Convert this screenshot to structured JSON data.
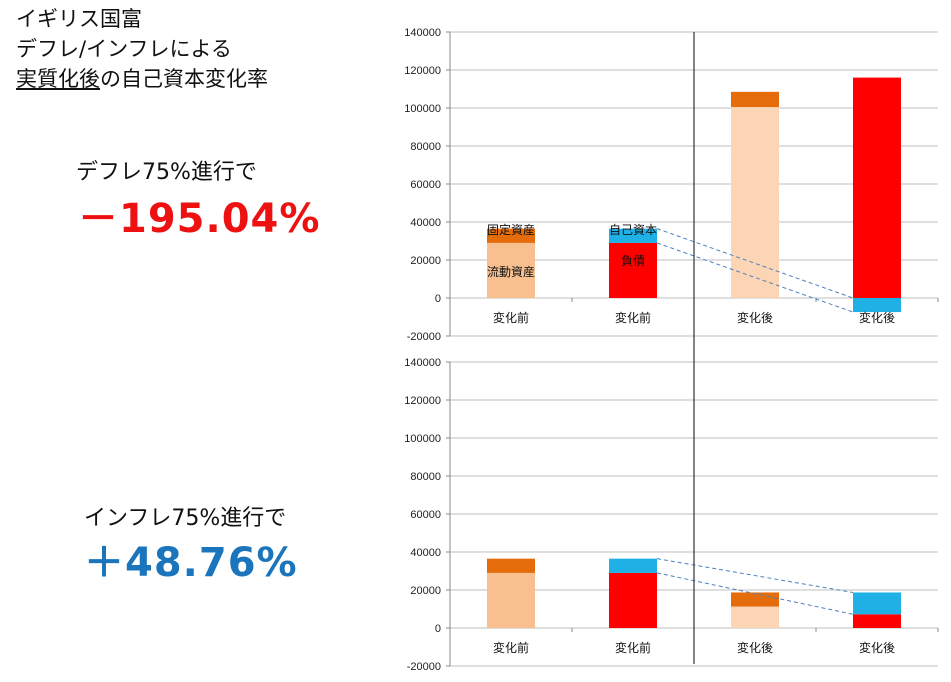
{
  "title": {
    "line1": "イギリス国富",
    "line2": "デフレ/インフレによる",
    "line3_underlined": "実質化後",
    "line3_rest": "の自己資本変化率"
  },
  "deflation": {
    "label": "デフレ75%進行で",
    "value": "－195.04%",
    "color": "#ee1111"
  },
  "inflation": {
    "label": "インフレ75%進行で",
    "value": "＋48.76%",
    "color": "#1a75bc"
  },
  "colors": {
    "current_assets": "#f9c08f",
    "current_assets_after": "#fcd5b4",
    "fixed_assets": "#e46c0a",
    "liabilities": "#ff0000",
    "equity": "#1fb0e6",
    "connector": "#4f81bd",
    "grid": "#bfbfbf",
    "divider": "#333333"
  },
  "chart_data": [
    {
      "type": "bar",
      "stacked": true,
      "categories": [
        "変化前",
        "変化前",
        "変化後",
        "変化後"
      ],
      "ylim": [
        -20000,
        140000
      ],
      "yticks": [
        -20000,
        0,
        20000,
        40000,
        60000,
        80000,
        100000,
        120000,
        140000
      ],
      "series": [
        {
          "name": "流動資産",
          "values": [
            29000,
            0,
            100500,
            0
          ]
        },
        {
          "name": "固定資産",
          "values": [
            7500,
            0,
            8000,
            0
          ]
        },
        {
          "name": "負債",
          "values": [
            0,
            29000,
            0,
            116000
          ]
        },
        {
          "name": "自己資本",
          "values": [
            0,
            7500,
            0,
            -7400
          ]
        }
      ],
      "annotations": [
        "固定資産",
        "流動資産",
        "自己資本",
        "負債"
      ]
    },
    {
      "type": "bar",
      "stacked": true,
      "categories": [
        "変化前",
        "変化前",
        "変化後",
        "変化後"
      ],
      "ylim": [
        -20000,
        140000
      ],
      "yticks": [
        -20000,
        0,
        20000,
        40000,
        60000,
        80000,
        100000,
        120000,
        140000
      ],
      "series": [
        {
          "values": [
            29000,
            0,
            11300,
            0
          ]
        },
        {
          "values": [
            7500,
            0,
            7400,
            0
          ]
        },
        {
          "values": [
            0,
            29000,
            0,
            7200
          ]
        },
        {
          "values": [
            0,
            7500,
            0,
            11500
          ]
        }
      ],
      "annotations": []
    }
  ]
}
